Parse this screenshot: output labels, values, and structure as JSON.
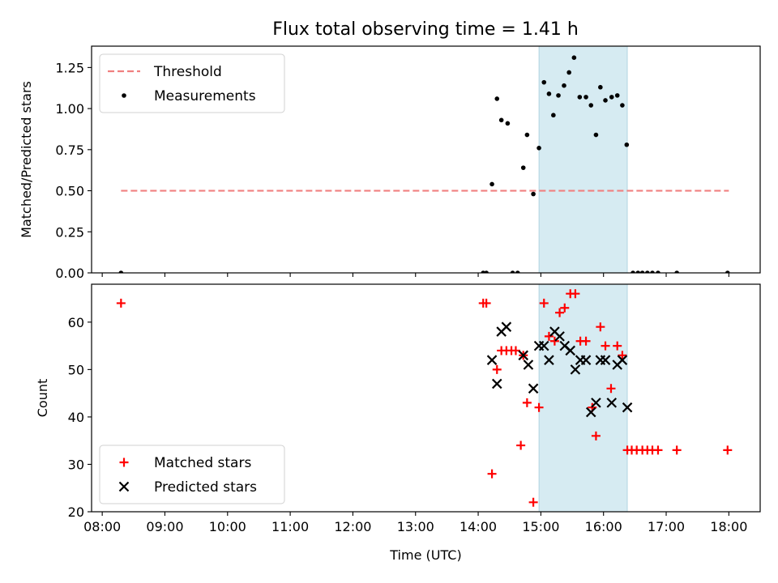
{
  "title": "Flux total observing time = 1.41 h",
  "chart_data": [
    {
      "type": "scatter",
      "ylabel": "Matched/Predicted stars",
      "xlabel": "",
      "xlim": [
        7.83,
        18.5
      ],
      "ylim": [
        0,
        1.38
      ],
      "ytick_labels": [
        "0.00",
        "0.25",
        "0.50",
        "0.75",
        "1.00",
        "1.25"
      ],
      "yticks": [
        0,
        0.25,
        0.5,
        0.75,
        1.0,
        1.25
      ],
      "xticks": [
        8,
        9,
        10,
        11,
        12,
        13,
        14,
        15,
        16,
        17,
        18
      ],
      "shaded_span": [
        14.97,
        16.38
      ],
      "shade_color": "#add8e6",
      "legend_position": "upper left",
      "threshold": {
        "name": "Threshold",
        "value": 0.5,
        "x_range": [
          8.3,
          18.0
        ],
        "color": "#f08080",
        "style": "dashed"
      },
      "series": [
        {
          "name": "Measurements",
          "marker": "dot",
          "color": "#000000",
          "x": [
            8.3,
            14.08,
            14.13,
            14.22,
            14.3,
            14.37,
            14.47,
            14.55,
            14.63,
            14.72,
            14.78,
            14.88,
            14.97,
            15.05,
            15.13,
            15.2,
            15.28,
            15.37,
            15.45,
            15.53,
            15.62,
            15.72,
            15.8,
            15.88,
            15.95,
            16.03,
            16.13,
            16.22,
            16.3,
            16.37,
            16.47,
            16.55,
            16.62,
            16.7,
            16.78,
            16.87,
            17.17,
            17.98
          ],
          "y": [
            0.0,
            0.0,
            0.0,
            0.54,
            1.06,
            0.93,
            0.91,
            0.0,
            0.0,
            0.64,
            0.84,
            0.48,
            0.76,
            1.16,
            1.09,
            0.96,
            1.08,
            1.14,
            1.22,
            1.31,
            1.07,
            1.07,
            1.02,
            0.84,
            1.13,
            1.05,
            1.07,
            1.08,
            1.02,
            0.78,
            0.0,
            0.0,
            0.0,
            0.0,
            0.0,
            0.0,
            0.0,
            0.0
          ]
        }
      ]
    },
    {
      "type": "scatter",
      "ylabel": "Count",
      "xlabel": "Time (UTC)",
      "xlim": [
        7.83,
        18.5
      ],
      "ylim": [
        20,
        68
      ],
      "ytick_labels": [
        "20",
        "30",
        "40",
        "50",
        "60"
      ],
      "yticks": [
        20,
        30,
        40,
        50,
        60
      ],
      "xticks": [
        8,
        9,
        10,
        11,
        12,
        13,
        14,
        15,
        16,
        17,
        18
      ],
      "xtick_labels": [
        "08:00",
        "09:00",
        "10:00",
        "11:00",
        "12:00",
        "13:00",
        "14:00",
        "15:00",
        "16:00",
        "17:00",
        "18:00"
      ],
      "shaded_span": [
        14.97,
        16.38
      ],
      "shade_color": "#add8e6",
      "legend_position": "lower left",
      "series": [
        {
          "name": "Matched stars",
          "marker": "plus",
          "color": "#ff0000",
          "x": [
            8.3,
            14.08,
            14.13,
            14.22,
            14.3,
            14.37,
            14.45,
            14.53,
            14.6,
            14.68,
            14.72,
            14.78,
            14.88,
            14.97,
            15.05,
            15.13,
            15.22,
            15.3,
            15.38,
            15.47,
            15.55,
            15.63,
            15.72,
            15.82,
            15.88,
            15.95,
            16.03,
            16.12,
            16.22,
            16.3,
            16.38,
            16.45,
            16.53,
            16.62,
            16.7,
            16.78,
            16.87,
            17.17,
            17.98
          ],
          "y": [
            64,
            64,
            64,
            28,
            50,
            54,
            54,
            54,
            54,
            34,
            53,
            43,
            22,
            42,
            64,
            57,
            56,
            62,
            63,
            66,
            66,
            56,
            56,
            42,
            36,
            59,
            55,
            46,
            55,
            53,
            33,
            33,
            33,
            33,
            33,
            33,
            33,
            33,
            33
          ]
        },
        {
          "name": "Predicted stars",
          "marker": "x",
          "color": "#000000",
          "x": [
            14.22,
            14.3,
            14.37,
            14.45,
            14.72,
            14.8,
            14.88,
            14.97,
            15.05,
            15.13,
            15.22,
            15.3,
            15.38,
            15.47,
            15.55,
            15.63,
            15.72,
            15.8,
            15.88,
            15.95,
            16.03,
            16.13,
            16.22,
            16.3,
            16.38
          ],
          "y": [
            52,
            47,
            58,
            59,
            53,
            51,
            46,
            55,
            55,
            52,
            58,
            57,
            55,
            54,
            50,
            52,
            52,
            41,
            43,
            52,
            52,
            43,
            51,
            52,
            42
          ]
        }
      ]
    }
  ]
}
